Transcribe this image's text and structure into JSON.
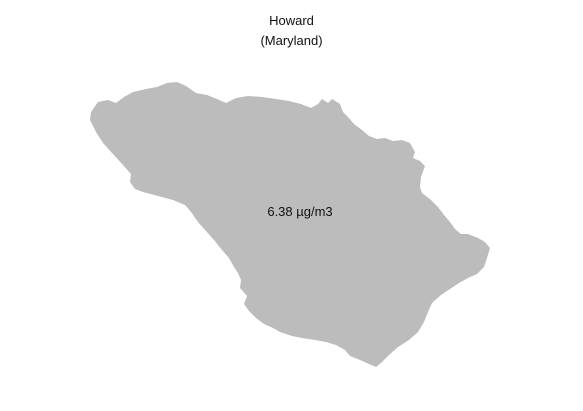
{
  "map": {
    "title_line1": "Howard",
    "title_line2": "(Maryland)",
    "region_name": "Howard",
    "value_label": "6.38 µg/m3",
    "fill_color": "#bcbcbc",
    "background_color": "#ffffff"
  }
}
